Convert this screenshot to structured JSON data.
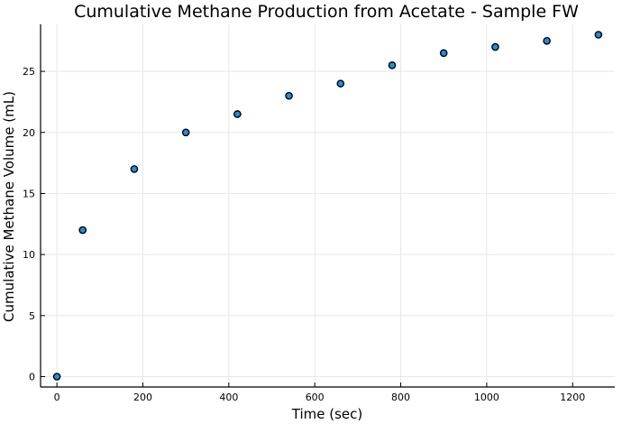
{
  "chart_data": {
    "type": "scatter",
    "title": "Cumulative Methane Production from Acetate - Sample FW",
    "xlabel": "Time (sec)",
    "ylabel": "Cumulative Methane Volume (mL)",
    "x": [
      0,
      60,
      180,
      300,
      420,
      540,
      660,
      780,
      900,
      1020,
      1140,
      1260
    ],
    "y": [
      0,
      12,
      17,
      20,
      21.5,
      23,
      24,
      25.5,
      26.5,
      27,
      27.5,
      28
    ],
    "xlim": [
      -38,
      1298
    ],
    "ylim": [
      -0.85,
      28.85
    ],
    "xticks": [
      0,
      200,
      400,
      600,
      800,
      1000,
      1200
    ],
    "yticks": [
      0,
      5,
      10,
      15,
      20,
      25
    ],
    "grid": true,
    "marker_color": "#1f8fe0"
  }
}
